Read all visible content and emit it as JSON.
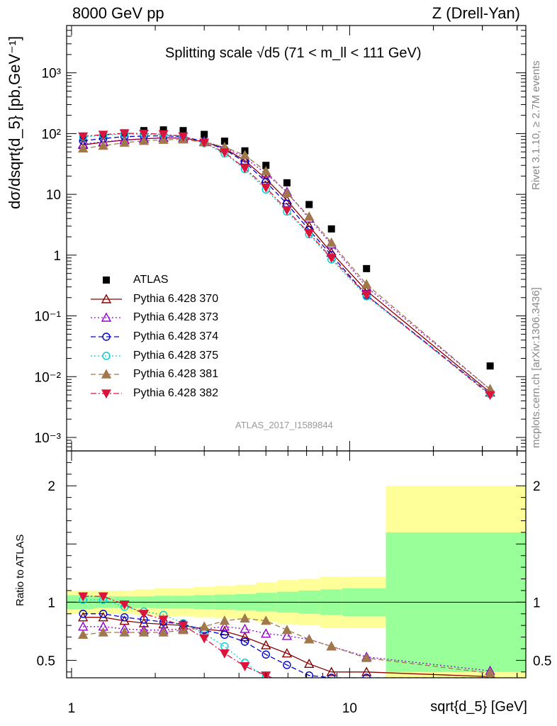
{
  "header": {
    "left": "8000 GeV pp",
    "right": "Z (Drell-Yan)"
  },
  "side_labels": {
    "rivet": "Rivet 3.1.10, ≥ 2.7M events",
    "mcplots": "mcplots.cern.ch [arXiv:1306.3436]"
  },
  "analysis_tag": "ATLAS_2017_I1589844",
  "chart_data": [
    {
      "type": "scatter",
      "title": "Splitting scale √d5 (71 < m_ll < 111 GeV)",
      "ylabel": "dσ/dsqrt{d_5} [pb,GeV⁻¹]",
      "xlabel": "sqrt{d_5} [GeV]",
      "xscale": "log",
      "yscale": "log",
      "xlim": [
        0.96,
        43
      ],
      "ylim": [
        0.0006,
        6000
      ],
      "x_tick_labels": [
        "1",
        "10"
      ],
      "y_tick_labels": [
        "10⁻³",
        "10⁻²",
        "10⁻¹",
        "1",
        "10",
        "10²",
        "10³"
      ],
      "legend_position": "center-left",
      "x": [
        1.1,
        1.3,
        1.55,
        1.82,
        2.14,
        2.52,
        3.0,
        3.55,
        4.2,
        5.0,
        5.95,
        7.15,
        8.6,
        11.5,
        32
      ],
      "series": [
        {
          "name": "ATLAS",
          "color": "#000000",
          "marker": "square-filled",
          "line": "none",
          "values": [
            85,
            92,
            103,
            112,
            115,
            112,
            97,
            75,
            52,
            30,
            15.5,
            6.8,
            2.7,
            0.6,
            0.015
          ]
        },
        {
          "name": "Pythia 6.428 370",
          "color": "#8b0000",
          "marker": "triangle-up-open",
          "line": "solid",
          "values": [
            65,
            72,
            78,
            82,
            85,
            84,
            73,
            57,
            36,
            18,
            8.0,
            3.0,
            1.1,
            0.26,
            0.0055
          ]
        },
        {
          "name": "Pythia 6.428 373",
          "color": "#9400d3",
          "marker": "triangle-up-open",
          "line": "dotted",
          "values": [
            67,
            73,
            79,
            82,
            86,
            85,
            74,
            59,
            40,
            22,
            11,
            4.0,
            1.5,
            0.3,
            0.0062
          ]
        },
        {
          "name": "Pythia 6.428 374",
          "color": "#0000cc",
          "marker": "circle-open",
          "line": "dashed",
          "values": [
            76,
            83,
            89,
            91,
            92,
            89,
            74,
            55,
            34,
            16,
            7.0,
            2.6,
            1.0,
            0.22,
            0.0052
          ]
        },
        {
          "name": "Pythia 6.428 375",
          "color": "#00ced1",
          "marker": "circle-open",
          "line": "dotted",
          "values": [
            88,
            94,
            99,
            98,
            96,
            88,
            70,
            47,
            26,
            12,
            5.2,
            2.2,
            0.85,
            0.21,
            0.0052
          ]
        },
        {
          "name": "Pythia 6.428 381",
          "color": "#a0784b",
          "marker": "triangle-up-filled",
          "line": "dashed",
          "values": [
            57,
            63,
            71,
            76,
            79,
            80,
            72,
            60,
            44,
            24,
            10.5,
            4.3,
            1.6,
            0.33,
            0.0062
          ]
        },
        {
          "name": "Pythia 6.428 382",
          "color": "#dc143c",
          "marker": "triangle-down-filled",
          "line": "dashdot",
          "values": [
            90,
            96,
            101,
            100,
            98,
            90,
            71,
            49,
            27,
            13,
            5.5,
            2.3,
            0.9,
            0.22,
            0.005
          ]
        }
      ]
    },
    {
      "type": "line",
      "ylabel": "Ratio to ATLAS",
      "xlabel": "sqrt{d_5} [GeV]",
      "xscale": "log",
      "xlim": [
        0.96,
        43
      ],
      "ylim": [
        0.35,
        2.3
      ],
      "y_tick_labels": [
        "0.5",
        "1",
        "2"
      ],
      "reference_line": 1,
      "bin_edges": [
        0.96,
        1.2,
        1.42,
        1.68,
        1.98,
        2.32,
        2.75,
        3.27,
        3.88,
        4.6,
        5.48,
        6.55,
        7.85,
        9.4,
        13.5,
        43
      ],
      "band_stat_half": [
        0.06,
        0.05,
        0.05,
        0.05,
        0.055,
        0.055,
        0.06,
        0.065,
        0.07,
        0.08,
        0.09,
        0.1,
        0.11,
        0.12,
        0.6
      ],
      "band_total_half": [
        0.1,
        0.1,
        0.1,
        0.11,
        0.12,
        0.12,
        0.13,
        0.14,
        0.15,
        0.17,
        0.19,
        0.2,
        0.22,
        0.22,
        1.0
      ],
      "band_colors": {
        "stat": "#99ff99",
        "total": "#ffff99"
      },
      "x": [
        1.1,
        1.3,
        1.55,
        1.82,
        2.14,
        2.52,
        3.0,
        3.55,
        4.2,
        5.0,
        5.95,
        7.15,
        8.6,
        11.5,
        32
      ],
      "series": [
        {
          "name": "Pythia 6.428 370",
          "values": [
            0.87,
            0.87,
            0.84,
            0.82,
            0.81,
            0.8,
            0.77,
            0.75,
            0.7,
            0.63,
            0.56,
            0.47,
            0.4,
            0.4,
            0.36
          ]
        },
        {
          "name": "Pythia 6.428 373",
          "values": [
            0.79,
            0.79,
            0.77,
            0.76,
            0.76,
            0.77,
            0.77,
            0.79,
            0.77,
            0.73,
            0.71,
            0.68,
            0.62,
            0.53,
            0.41
          ]
        },
        {
          "name": "Pythia 6.428 374",
          "values": [
            0.9,
            0.9,
            0.87,
            0.85,
            0.83,
            0.81,
            0.76,
            0.72,
            0.66,
            0.55,
            0.46,
            0.37,
            0.35,
            0.35,
            0.35
          ]
        },
        {
          "name": "Pythia 6.428 375",
          "values": [
            1.02,
            1.02,
            0.96,
            0.92,
            0.89,
            0.82,
            0.73,
            0.62,
            0.48,
            0.35,
            0.3,
            0.3,
            0.3,
            0.3,
            0.3
          ]
        },
        {
          "name": "Pythia 6.428 381",
          "values": [
            0.72,
            0.74,
            0.74,
            0.74,
            0.74,
            0.76,
            0.79,
            0.84,
            0.86,
            0.84,
            0.76,
            0.68,
            0.62,
            0.52,
            0.39
          ]
        },
        {
          "name": "Pythia 6.428 382",
          "values": [
            1.05,
            1.05,
            0.98,
            0.9,
            0.85,
            0.8,
            0.69,
            0.56,
            0.45,
            0.37,
            0.3,
            0.3,
            0.3,
            0.3,
            0.3
          ]
        }
      ]
    }
  ]
}
